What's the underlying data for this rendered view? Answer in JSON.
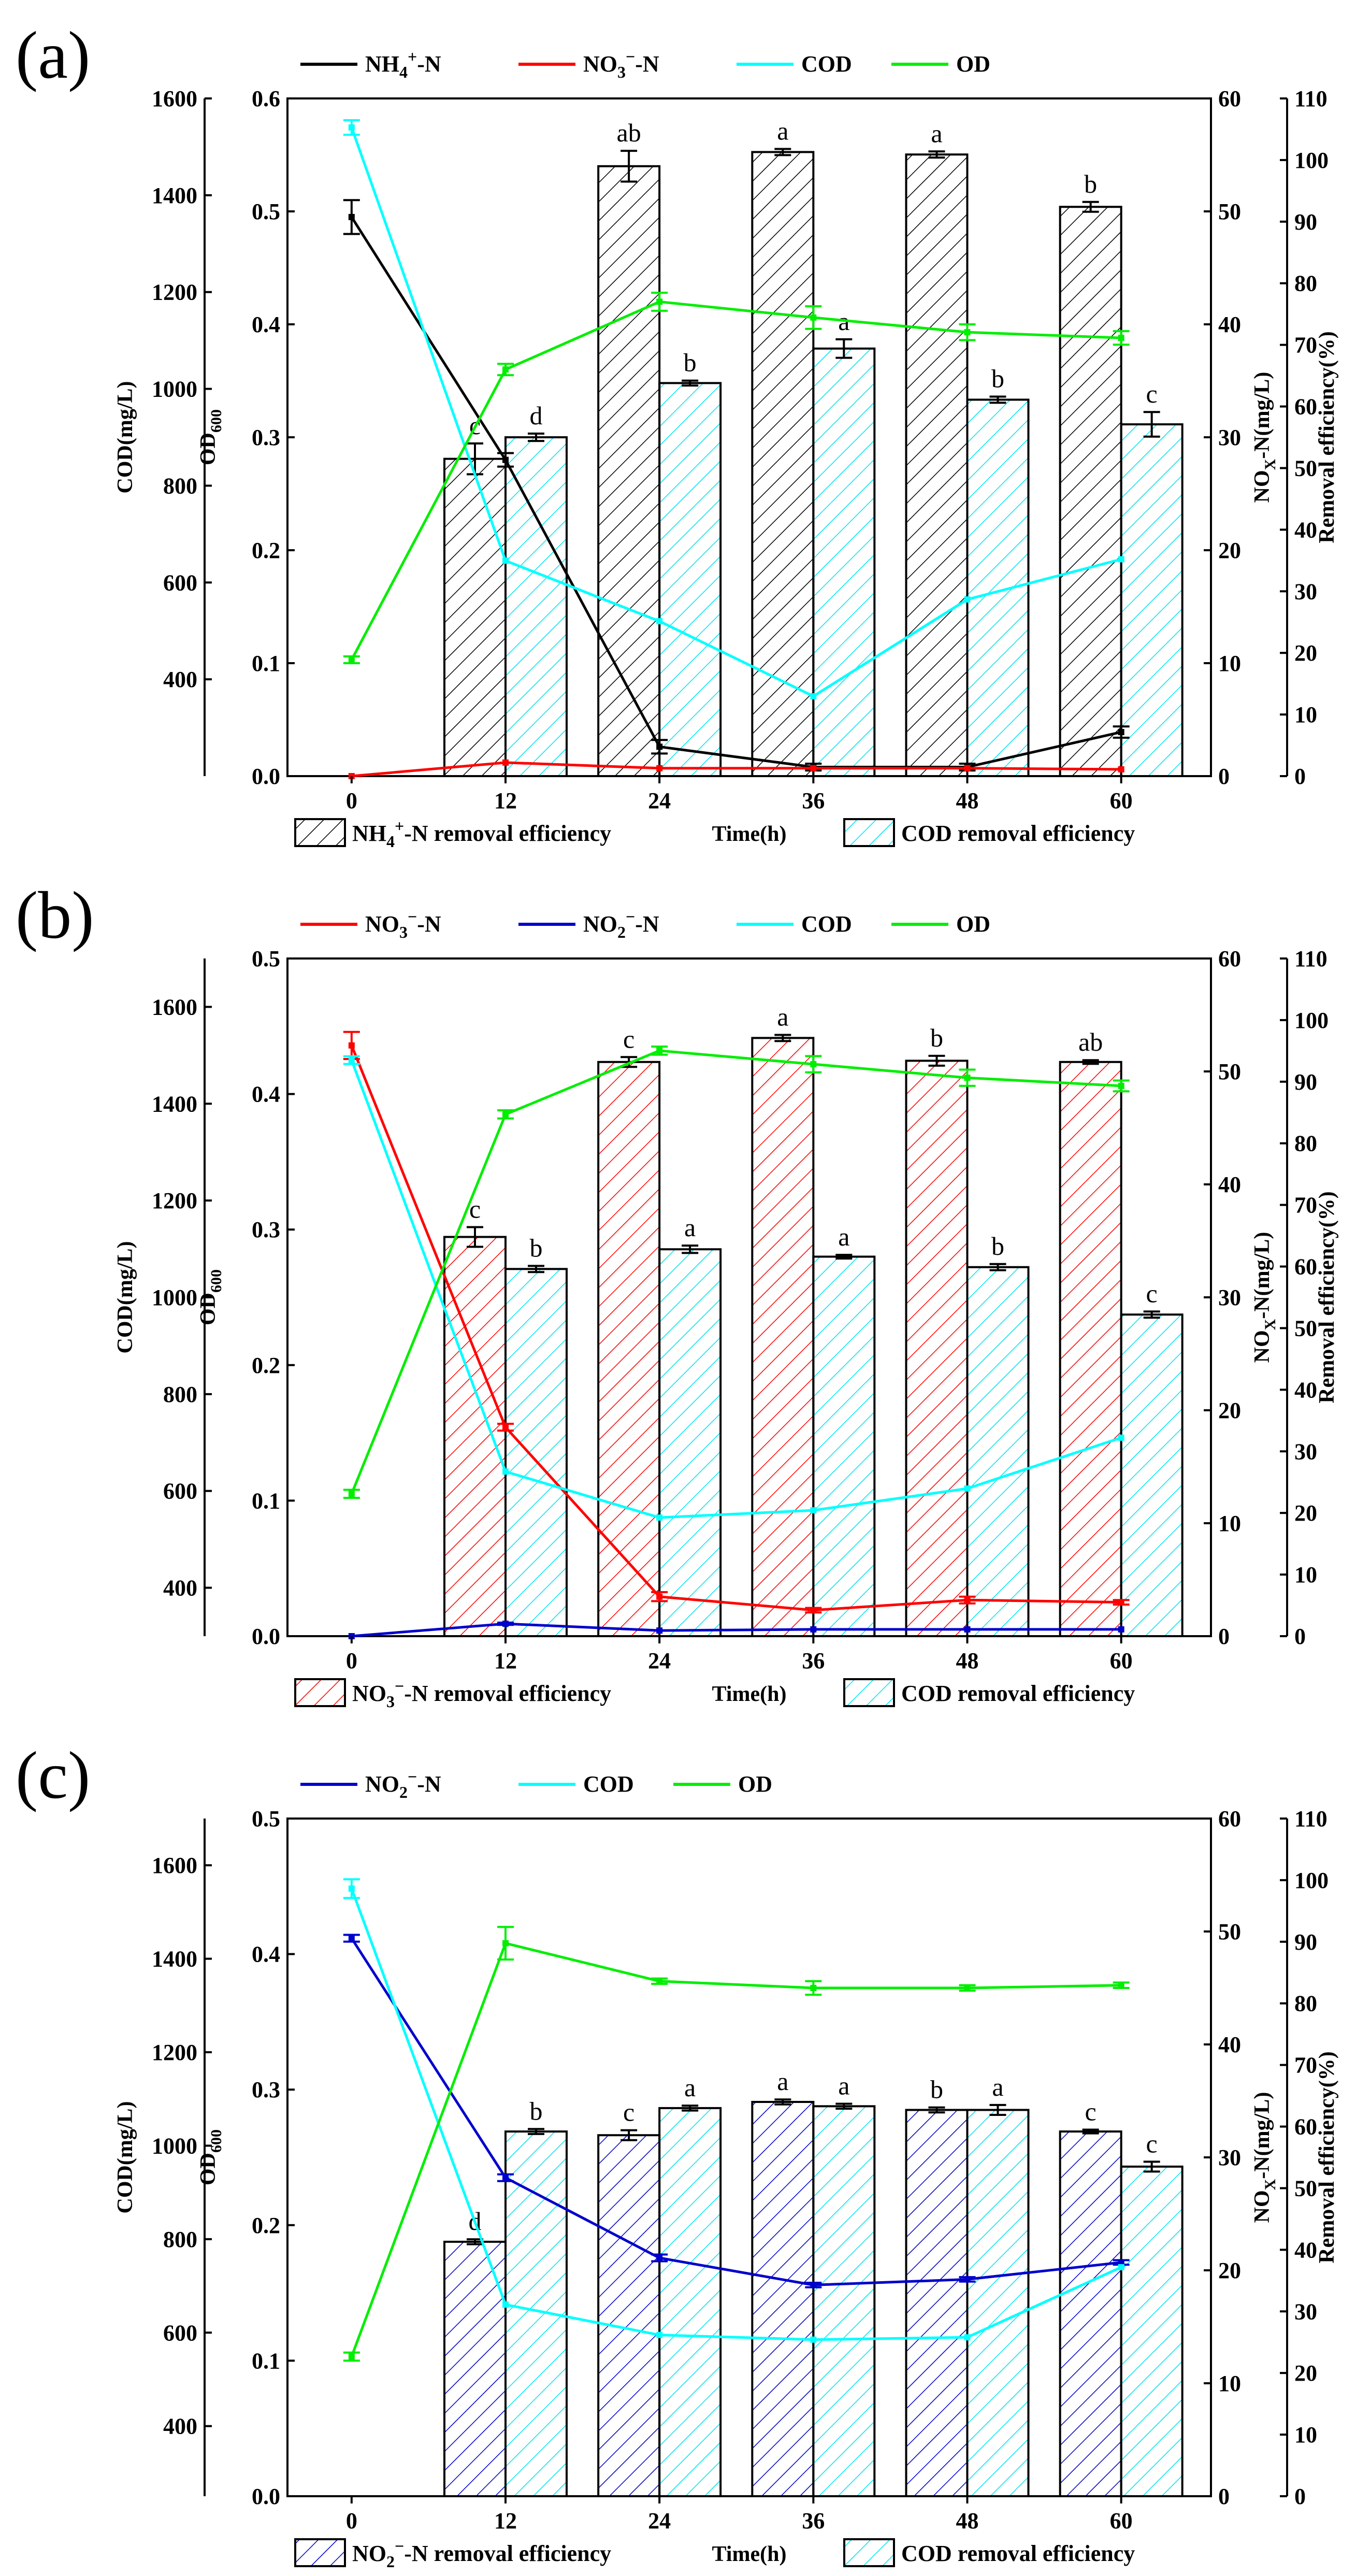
{
  "colors": {
    "NH4": "#000000",
    "NO3": "#ff0000",
    "NO2": "#0000cc",
    "COD": "#00ffff",
    "OD": "#00ee00",
    "NH4_fill": "#000000",
    "NO3_fill": "#ff0000",
    "NO2_fill": "#0000cc",
    "COD_fill": "#00ffff"
  },
  "chart_data": [
    {
      "panel": "(a)",
      "type": "bar+line",
      "xlabel": "Time(h)",
      "x": [
        0,
        12,
        24,
        36,
        48,
        60
      ],
      "x_ticks": [
        "0",
        "12",
        "24",
        "36",
        "48",
        "60"
      ],
      "axes": {
        "cod": {
          "label": "COD(mg/L)",
          "range": [
            200,
            1600
          ],
          "ticks": [
            "400",
            "600",
            "800",
            "1000",
            "1200",
            "1400",
            "1600"
          ]
        },
        "od": {
          "label_main": "OD",
          "label_sub": "600",
          "range": [
            0,
            0.6
          ],
          "ticks": [
            "0.0",
            "0.1",
            "0.2",
            "0.3",
            "0.4",
            "0.5",
            "0.6"
          ]
        },
        "nox": {
          "label": "NOX-N(mg/L)",
          "label_text": "NO",
          "label_sub": "X",
          "label_rest": "-N(mg/L)",
          "range": [
            0,
            60
          ],
          "ticks": [
            "0",
            "10",
            "20",
            "30",
            "40",
            "50",
            "60"
          ]
        },
        "removal": {
          "label": "Removal efficiency(%)",
          "range": [
            0,
            110
          ],
          "ticks": [
            "0",
            "10",
            "20",
            "30",
            "40",
            "50",
            "60",
            "70",
            "80",
            "90",
            "100",
            "110"
          ]
        }
      },
      "lines": [
        {
          "key": "NH4",
          "label": "NH4+-N",
          "main": "NH",
          "sub": "4",
          "sup": "+",
          "tail": "-N",
          "axis": "nox",
          "values": [
            49.5,
            28,
            2.6,
            0.8,
            0.8,
            3.9
          ],
          "errors": [
            1.5,
            0.6,
            0.6,
            0.3,
            0.3,
            0.5
          ]
        },
        {
          "key": "NO3",
          "label": "NO3−-N",
          "main": "NO",
          "sub": "3",
          "sup": "−",
          "tail": "-N",
          "axis": "nox",
          "values": [
            0,
            1.2,
            0.7,
            0.7,
            0.7,
            0.6
          ],
          "errors": [
            0,
            0,
            0,
            0,
            0,
            0
          ]
        },
        {
          "key": "COD",
          "label": "COD",
          "main": "COD",
          "axis": "cod",
          "values": [
            1540,
            645,
            520,
            365,
            565,
            648
          ],
          "errors": [
            15,
            0,
            0,
            0,
            0,
            0
          ]
        },
        {
          "key": "OD",
          "label": "OD",
          "main": "OD",
          "axis": "od",
          "values": [
            0.103,
            0.36,
            0.42,
            0.406,
            0.393,
            0.388
          ],
          "errors": [
            0.003,
            0.005,
            0.008,
            0.01,
            0.007,
            0.006
          ]
        }
      ],
      "bars": [
        {
          "key": "NH4",
          "label": "NH4+-N removal efficiency",
          "main": "NH",
          "sub": "4",
          "sup": "+",
          "tail": "-N removal efficiency",
          "values": [
            51.5,
            99,
            101.3,
            100.9,
            92.4
          ],
          "errors": [
            2.5,
            2.5,
            0.5,
            0.5,
            0.8
          ],
          "letters": [
            "c",
            "ab",
            "a",
            "a",
            "b"
          ]
        },
        {
          "key": "COD",
          "label": "COD removal efficiency",
          "main": "COD removal efficiency",
          "values": [
            55,
            63.8,
            69.4,
            61.1,
            57.1
          ],
          "errors": [
            0.6,
            0.4,
            1.5,
            0.5,
            2.0
          ],
          "letters": [
            "d",
            "b",
            "a",
            "b",
            "c"
          ]
        }
      ]
    },
    {
      "panel": "(b)",
      "type": "bar+line",
      "xlabel": "Time(h)",
      "x": [
        0,
        12,
        24,
        36,
        48,
        60
      ],
      "x_ticks": [
        "0",
        "12",
        "24",
        "36",
        "48",
        "60"
      ],
      "axes": {
        "cod": {
          "label": "COD(mg/L)",
          "range": [
            300,
            1700
          ],
          "ticks": [
            "400",
            "600",
            "800",
            "1000",
            "1200",
            "1400",
            "1600"
          ]
        },
        "od": {
          "label_main": "OD",
          "label_sub": "600",
          "range": [
            0,
            0.5
          ],
          "ticks": [
            "0.0",
            "0.1",
            "0.2",
            "0.3",
            "0.4",
            "0.5"
          ]
        },
        "nox": {
          "label": "NOX-N(mg/L)",
          "label_text": "NO",
          "label_sub": "X",
          "label_rest": "-N(mg/L)",
          "range": [
            0,
            60
          ],
          "ticks": [
            "0",
            "10",
            "20",
            "30",
            "40",
            "50",
            "60"
          ]
        },
        "removal": {
          "label": "Removal efficiency(%)",
          "range": [
            0,
            110
          ],
          "ticks": [
            "0",
            "10",
            "20",
            "30",
            "40",
            "50",
            "60",
            "70",
            "80",
            "90",
            "100",
            "110"
          ]
        }
      },
      "lines": [
        {
          "key": "NO3",
          "label": "NO3−-N",
          "main": "NO",
          "sub": "3",
          "sup": "−",
          "tail": "-N",
          "axis": "nox",
          "values": [
            52.3,
            18.5,
            3.5,
            2.3,
            3.2,
            3.0
          ],
          "errors": [
            1.2,
            0.3,
            0.4,
            0.2,
            0.3,
            0.2
          ]
        },
        {
          "key": "NO2",
          "label": "NO2−-N",
          "main": "NO",
          "sub": "2",
          "sup": "−",
          "tail": "-N",
          "axis": "nox",
          "values": [
            0,
            1.1,
            0.5,
            0.6,
            0.6,
            0.6
          ],
          "errors": [
            0,
            0.1,
            0,
            0,
            0,
            0
          ]
        },
        {
          "key": "COD",
          "label": "COD",
          "main": "COD",
          "axis": "cod",
          "values": [
            1490,
            640,
            545,
            560,
            605,
            710
          ],
          "errors": [
            8,
            0,
            0,
            0,
            0,
            0
          ]
        },
        {
          "key": "OD",
          "label": "OD",
          "main": "OD",
          "axis": "od",
          "values": [
            0.105,
            0.385,
            0.432,
            0.422,
            0.412,
            0.406
          ],
          "errors": [
            0.003,
            0.003,
            0.003,
            0.006,
            0.006,
            0.004
          ]
        }
      ],
      "bars": [
        {
          "key": "NO3",
          "label": "NO3−-N removal efficiency",
          "main": "NO",
          "sub": "3",
          "sup": "−",
          "tail": "-N removal efficiency",
          "values": [
            64.8,
            93.2,
            97.1,
            93.4,
            93.2
          ],
          "errors": [
            1.6,
            0.8,
            0.5,
            0.8,
            0.3
          ],
          "letters": [
            "c",
            "c",
            "a",
            "b",
            "ab"
          ]
        },
        {
          "key": "COD",
          "label": "COD removal efficiency",
          "main": "COD removal efficiency",
          "values": [
            59.6,
            62.8,
            61.6,
            59.9,
            52.2
          ],
          "errors": [
            0.5,
            0.6,
            0.3,
            0.5,
            0.5
          ],
          "letters": [
            "b",
            "a",
            "a",
            "b",
            "c"
          ]
        }
      ]
    },
    {
      "panel": "(c)",
      "type": "bar+line",
      "xlabel": "Time(h)",
      "x": [
        0,
        12,
        24,
        36,
        48,
        60
      ],
      "x_ticks": [
        "0",
        "12",
        "24",
        "36",
        "48",
        "60"
      ],
      "axes": {
        "cod": {
          "label": "COD(mg/L)",
          "range": [
            250,
            1700
          ],
          "ticks": [
            "400",
            "600",
            "800",
            "1000",
            "1200",
            "1400",
            "1600"
          ]
        },
        "od": {
          "label_main": "OD",
          "label_sub": "600",
          "range": [
            0,
            0.5
          ],
          "ticks": [
            "0.0",
            "0.1",
            "0.2",
            "0.3",
            "0.4",
            "0.5"
          ]
        },
        "nox": {
          "label": "NOX-N(mg/L)",
          "label_text": "NO",
          "label_sub": "X",
          "label_rest": "-N(mg/L)",
          "range": [
            0,
            60
          ],
          "ticks": [
            "0",
            "10",
            "20",
            "30",
            "40",
            "50",
            "60"
          ]
        },
        "removal": {
          "label": "Removal efficiency(%)",
          "range": [
            0,
            110
          ],
          "ticks": [
            "0",
            "10",
            "20",
            "30",
            "40",
            "50",
            "60",
            "70",
            "80",
            "90",
            "100",
            "110"
          ]
        }
      },
      "lines": [
        {
          "key": "NO2",
          "label": "NO2−-N",
          "main": "NO",
          "sub": "2",
          "sup": "−",
          "tail": "-N",
          "axis": "nox",
          "values": [
            49.4,
            28.2,
            21.1,
            18.7,
            19.2,
            20.7
          ],
          "errors": [
            0.3,
            0.3,
            0.3,
            0.2,
            0.2,
            0.2
          ]
        },
        {
          "key": "COD",
          "label": "COD",
          "main": "COD",
          "axis": "cod",
          "values": [
            1550,
            660,
            595,
            585,
            590,
            740
          ],
          "errors": [
            20,
            0,
            0,
            0,
            0,
            0
          ]
        },
        {
          "key": "OD",
          "label": "OD",
          "main": "OD",
          "axis": "od",
          "values": [
            0.103,
            0.408,
            0.38,
            0.375,
            0.375,
            0.377
          ],
          "errors": [
            0.003,
            0.012,
            0.002,
            0.005,
            0.002,
            0.002
          ]
        }
      ],
      "bars": [
        {
          "key": "NO2",
          "label": "NO2−-N removal efficiency",
          "main": "NO",
          "sub": "2",
          "sup": "−",
          "tail": "-N removal efficiency",
          "values": [
            41.3,
            58.6,
            64,
            62.7,
            59.2
          ],
          "errors": [
            0.4,
            0.8,
            0.4,
            0.4,
            0.3
          ],
          "letters": [
            "d",
            "c",
            "a",
            "b",
            "c"
          ]
        },
        {
          "key": "COD",
          "label": "COD removal efficiency",
          "main": "COD removal efficiency",
          "values": [
            59.2,
            63,
            63.3,
            62.7,
            53.5
          ],
          "errors": [
            0.4,
            0.4,
            0.4,
            0.8,
            0.8
          ],
          "letters": [
            "b",
            "a",
            "a",
            "a",
            "c"
          ]
        }
      ]
    }
  ]
}
